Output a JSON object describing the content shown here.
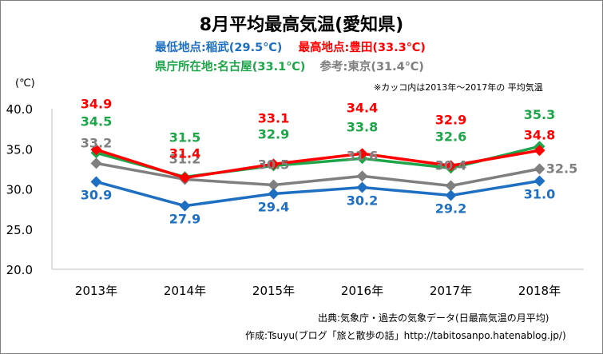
{
  "header": {
    "title": "8月平均最高気温(愛知県)",
    "low_label": "最低地点:稲武(29.5℃)",
    "high_label": "最高地点:豊田(33.3℃)",
    "pref_label": "県庁所在地:名古屋(33.1℃)",
    "ref_label": "参考:東京(31.4℃)",
    "note": "※カッコ内は2013年～2017年の 平均気温",
    "unit": "(℃)"
  },
  "colors": {
    "low": "#1e6fc1",
    "high": "#ff0000",
    "pref": "#1ea54a",
    "ref": "#7f7f7f"
  },
  "footer": {
    "source": "出典:気象庁・過去の気象データ(日最高気温の月平均)",
    "author": "作成:Tsuyu(ブログ「旅と散歩の話」http://tabitosanpo.hatenablog.jp/)"
  },
  "chart_data": {
    "type": "line",
    "categories": [
      "2013年",
      "2014年",
      "2015年",
      "2016年",
      "2017年",
      "2018年"
    ],
    "ylim": [
      20,
      40
    ],
    "yticks": [
      "20.0",
      "25.0",
      "30.0",
      "35.0",
      "40.0"
    ],
    "grid": false,
    "series": [
      {
        "key": "ref",
        "values": [
          33.2,
          31.2,
          30.5,
          31.6,
          30.4,
          32.5
        ],
        "labels": [
          "33.2",
          "31.2",
          "30.5",
          "31.6",
          "30.4",
          "32.5"
        ]
      },
      {
        "key": "low",
        "values": [
          30.9,
          27.9,
          29.4,
          30.2,
          29.2,
          31.0
        ],
        "labels": [
          "30.9",
          "27.9",
          "29.4",
          "30.2",
          "29.2",
          "31.0"
        ]
      },
      {
        "key": "pref",
        "values": [
          34.5,
          31.5,
          32.9,
          33.8,
          32.6,
          35.3
        ],
        "labels": [
          "34.5",
          "31.5",
          "32.9",
          "33.8",
          "32.6",
          "35.3"
        ]
      },
      {
        "key": "high",
        "values": [
          34.9,
          31.4,
          33.1,
          34.4,
          32.9,
          34.8
        ],
        "labels": [
          "34.9",
          "31.4",
          "33.1",
          "34.4",
          "32.9",
          "34.8"
        ]
      }
    ]
  }
}
